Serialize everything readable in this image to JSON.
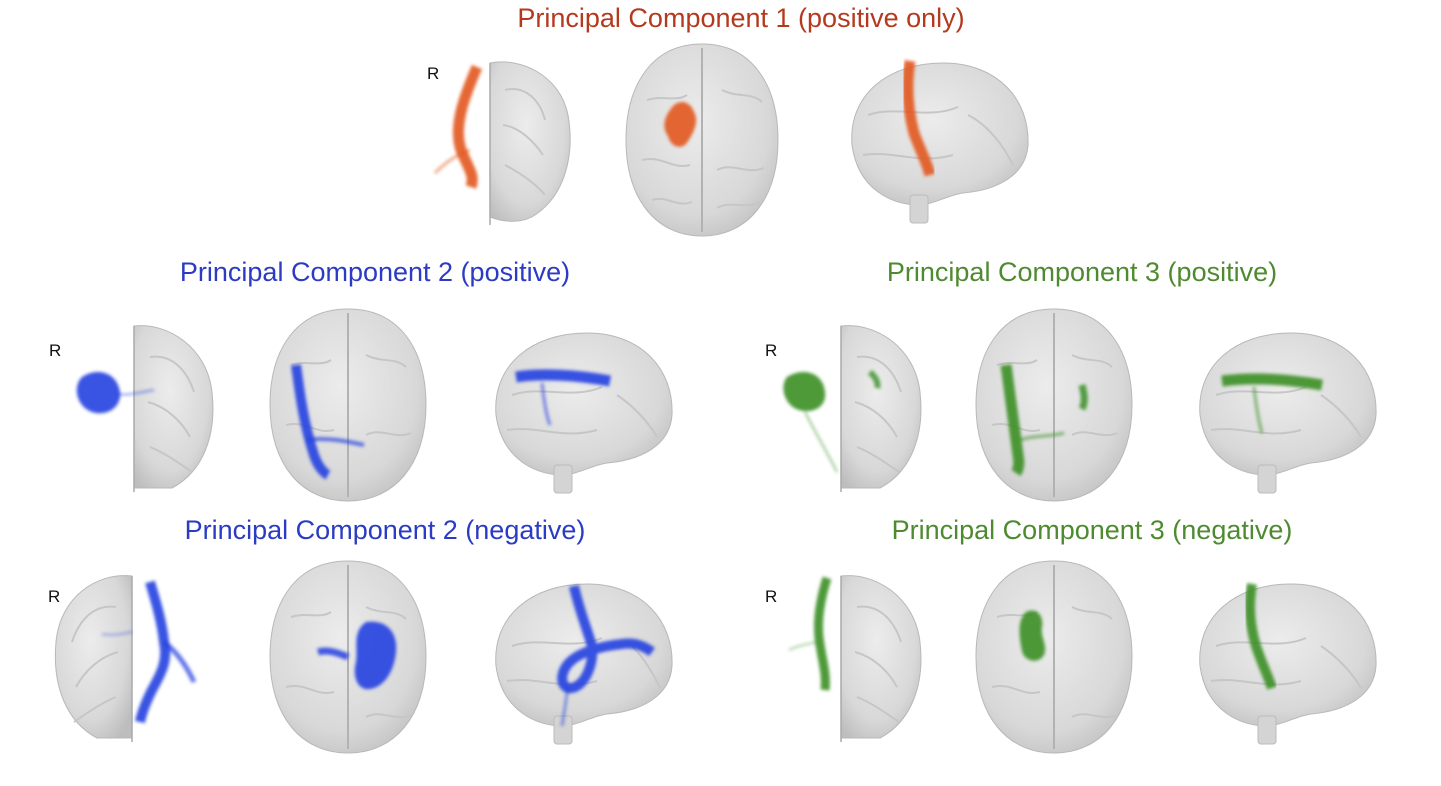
{
  "colors": {
    "component1": "#b5391d",
    "component2": "#2b3bc4",
    "component3": "#4e8a2f",
    "tract1": "#e2561c",
    "tract2": "#2440e0",
    "tract3": "#3a8f24",
    "brain": "#dcdcdc"
  },
  "orientation_label": "R",
  "rows": [
    {
      "title": "Principal Component 1 (positive only)",
      "color": "component1",
      "views": [
        "coronal",
        "axial",
        "sagittal"
      ]
    },
    {
      "title": "Principal Component 2 (positive)",
      "color": "component2",
      "views": [
        "coronal",
        "axial",
        "sagittal"
      ]
    },
    {
      "title": "Principal Component 3 (positive)",
      "color": "component3",
      "views": [
        "coronal",
        "axial",
        "sagittal"
      ]
    },
    {
      "title": "Principal Component 2 (negative)",
      "color": "component2",
      "views": [
        "coronal",
        "axial",
        "sagittal"
      ]
    },
    {
      "title": "Principal Component 3 (negative)",
      "color": "component3",
      "views": [
        "coronal",
        "axial",
        "sagittal"
      ]
    }
  ]
}
